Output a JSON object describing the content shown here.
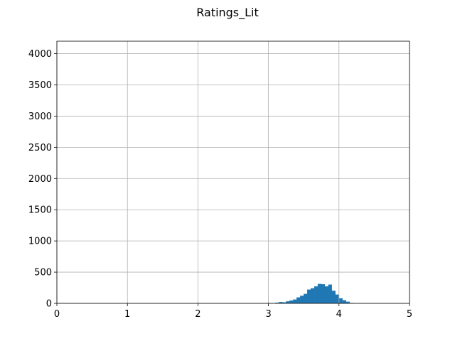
{
  "chart_data": {
    "type": "bar",
    "title": "Ratings_Lit",
    "xlabel": "",
    "ylabel": "",
    "xlim": [
      0,
      5
    ],
    "ylim": [
      0,
      4200
    ],
    "xticks": [
      "0",
      "1",
      "2",
      "3",
      "4",
      "5"
    ],
    "yticks": [
      "0",
      "500",
      "1000",
      "1500",
      "2000",
      "2500",
      "3000",
      "3500",
      "4000"
    ],
    "grid": true,
    "bar_color": "#1f77b4",
    "bin_width": 0.05,
    "bins": [
      {
        "x0": 3.1,
        "value": 10
      },
      {
        "x0": 3.15,
        "value": 20
      },
      {
        "x0": 3.2,
        "value": 15
      },
      {
        "x0": 3.25,
        "value": 30
      },
      {
        "x0": 3.3,
        "value": 45
      },
      {
        "x0": 3.35,
        "value": 60
      },
      {
        "x0": 3.4,
        "value": 95
      },
      {
        "x0": 3.45,
        "value": 120
      },
      {
        "x0": 3.5,
        "value": 150
      },
      {
        "x0": 3.55,
        "value": 220
      },
      {
        "x0": 3.6,
        "value": 240
      },
      {
        "x0": 3.65,
        "value": 270
      },
      {
        "x0": 3.7,
        "value": 310
      },
      {
        "x0": 3.75,
        "value": 305
      },
      {
        "x0": 3.8,
        "value": 270
      },
      {
        "x0": 3.85,
        "value": 300
      },
      {
        "x0": 3.9,
        "value": 200
      },
      {
        "x0": 3.95,
        "value": 140
      },
      {
        "x0": 4.0,
        "value": 80
      },
      {
        "x0": 4.05,
        "value": 50
      },
      {
        "x0": 4.1,
        "value": 25
      },
      {
        "x0": 4.15,
        "value": 5
      }
    ]
  }
}
